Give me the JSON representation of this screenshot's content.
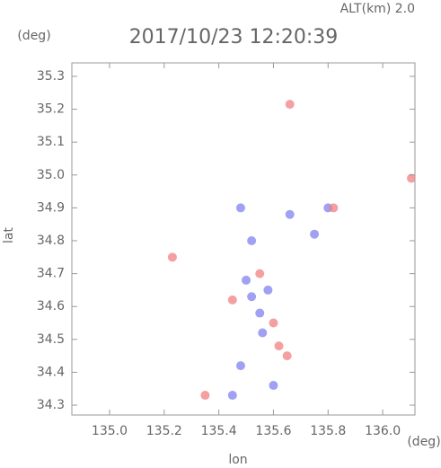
{
  "chart_data": {
    "type": "scatter",
    "title": "2017/10/23 12:20:39",
    "subtitle": "ALT(km) 2.0",
    "x_label": "lon",
    "y_label": "lat",
    "x_unit": "(deg)",
    "y_unit": "(deg)",
    "xlim": [
      134.862,
      136.118
    ],
    "ylim": [
      34.27,
      35.341
    ],
    "xticks": [
      {
        "value": 135,
        "label": "135.0"
      },
      135.2,
      135.4,
      135.6,
      135.8,
      {
        "value": 136,
        "label": "136.0"
      }
    ],
    "yticks": [
      34.3,
      34.4,
      34.5,
      34.6,
      34.7,
      34.8,
      34.9,
      {
        "value": 35,
        "label": "35.0"
      },
      35.1,
      35.2,
      35.3
    ],
    "series": [
      {
        "color": "#8080f0",
        "x": [
          135.52,
          135.55,
          135.58,
          135.5,
          135.56,
          135.48,
          135.66,
          135.75,
          135.8,
          135.48,
          135.45,
          135.6,
          135.52
        ],
        "values": [
          34.63,
          34.58,
          34.65,
          34.68,
          34.52,
          34.9,
          34.88,
          34.82,
          34.9,
          34.42,
          34.33,
          34.36,
          34.8
        ]
      },
      {
        "color": "#f08080",
        "x": [
          135.23,
          135.66,
          136.105,
          135.45,
          135.6,
          135.62,
          135.55,
          135.82,
          135.35,
          135.65
        ],
        "values": [
          34.75,
          35.215,
          34.99,
          34.62,
          34.55,
          34.48,
          34.7,
          34.9,
          34.33,
          34.45
        ]
      }
    ]
  }
}
